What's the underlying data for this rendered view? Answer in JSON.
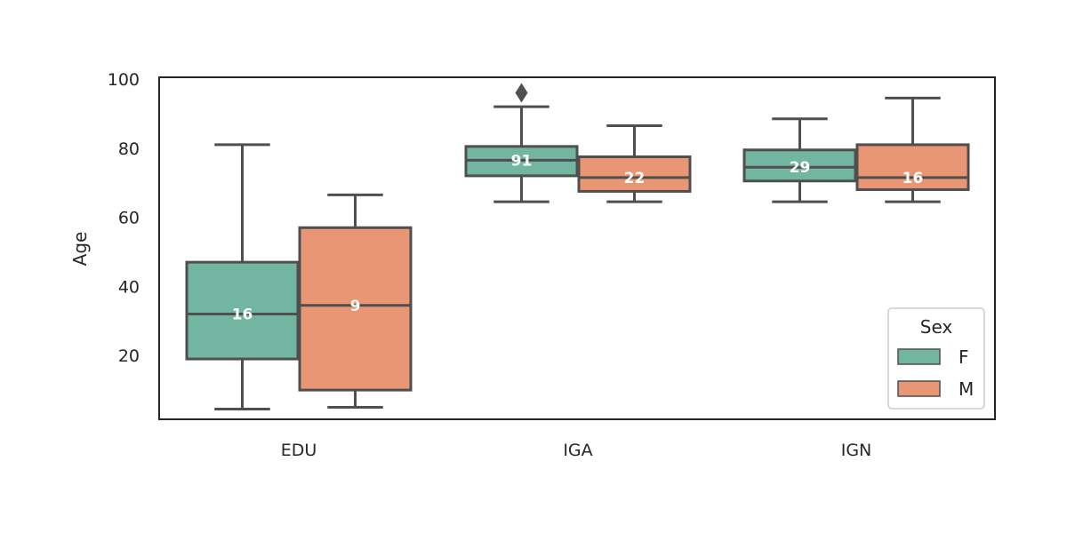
{
  "chart_data": {
    "type": "box",
    "ylabel": "Age",
    "xlabel": "",
    "ylim": [
      0,
      100
    ],
    "yticks": [
      20,
      40,
      60,
      80,
      100
    ],
    "categories": [
      "EDU",
      "IGA",
      "IGN"
    ],
    "grid": false,
    "legend": {
      "title": "Sex",
      "placement": "bottom-right",
      "entries": [
        {
          "label": "F",
          "color": "#72b6a1"
        },
        {
          "label": "M",
          "color": "#e99675"
        }
      ]
    },
    "series": [
      {
        "name": "F",
        "color": "#72b6a1",
        "boxes": [
          {
            "category": "EDU",
            "whisker_low": 4.5,
            "q1": 19,
            "median": 32,
            "q3": 47,
            "whisker_high": 81,
            "count_label": "16",
            "outliers": []
          },
          {
            "category": "IGA",
            "whisker_low": 64.5,
            "q1": 72,
            "median": 76.5,
            "q3": 80.5,
            "whisker_high": 92,
            "count_label": "91",
            "outliers": [
              96
            ]
          },
          {
            "category": "IGN",
            "whisker_low": 64.5,
            "q1": 70.5,
            "median": 74.5,
            "q3": 79.5,
            "whisker_high": 88.5,
            "count_label": "29",
            "outliers": []
          }
        ]
      },
      {
        "name": "M",
        "color": "#e99675",
        "boxes": [
          {
            "category": "EDU",
            "whisker_low": 5,
            "q1": 10,
            "median": 34.5,
            "q3": 57,
            "whisker_high": 66.5,
            "count_label": "9",
            "outliers": []
          },
          {
            "category": "IGA",
            "whisker_low": 64.5,
            "q1": 67.5,
            "median": 71.5,
            "q3": 77.5,
            "whisker_high": 86.5,
            "count_label": "22",
            "outliers": []
          },
          {
            "category": "IGN",
            "whisker_low": 64.5,
            "q1": 68,
            "median": 71.5,
            "q3": 81,
            "whisker_high": 94.5,
            "count_label": "16",
            "outliers": []
          }
        ]
      }
    ]
  }
}
